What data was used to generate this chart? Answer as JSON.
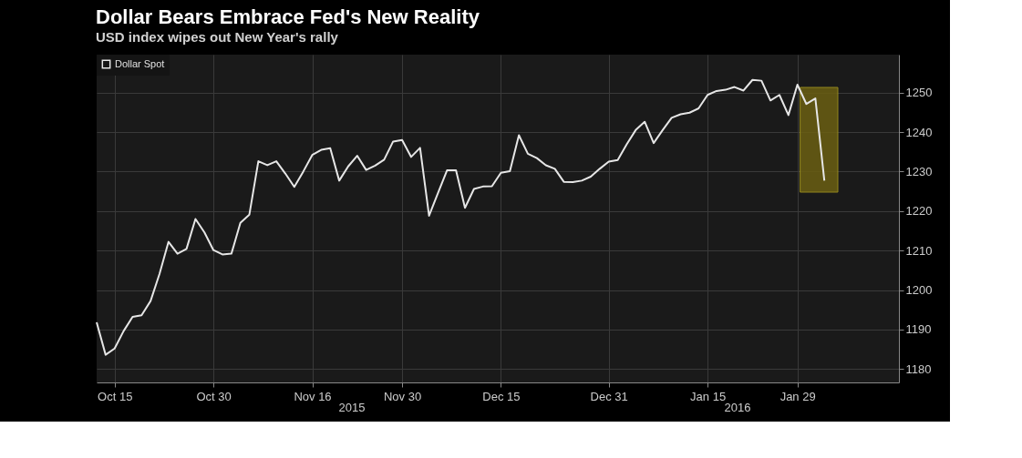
{
  "chart_data": {
    "type": "line",
    "title": "Dollar Bears Embrace Fed's New Reality",
    "subtitle": "USD index wipes out New Year's rally",
    "categories": [
      null,
      null,
      "Oct 15",
      null,
      null,
      null,
      null,
      null,
      null,
      null,
      null,
      null,
      null,
      "Oct 30",
      null,
      null,
      null,
      null,
      null,
      null,
      null,
      null,
      null,
      null,
      "Nov 16",
      null,
      null,
      null,
      null,
      null,
      null,
      null,
      null,
      null,
      "Nov 30",
      null,
      null,
      null,
      null,
      null,
      null,
      null,
      null,
      null,
      null,
      "Dec 15",
      null,
      null,
      null,
      null,
      null,
      null,
      null,
      null,
      null,
      null,
      null,
      "Dec 31",
      null,
      null,
      null,
      null,
      null,
      null,
      null,
      null,
      null,
      null,
      "Jan 15",
      null,
      null,
      null,
      null,
      null,
      null,
      null,
      null,
      null,
      "Jan 29",
      null,
      null,
      null
    ],
    "series": [
      {
        "name": "Dollar Spot",
        "color": "#e6e6e6",
        "values": [
          1191.8,
          1183.6,
          1185.2,
          1189.6,
          1193.2,
          1193.6,
          1197.2,
          1204.1,
          1212.2,
          1209.2,
          1210.4,
          1218.0,
          1214.6,
          1210.1,
          1209.0,
          1209.2,
          1217.0,
          1219.1,
          1232.6,
          1231.6,
          1232.6,
          1229.5,
          1226.1,
          1230.0,
          1234.2,
          1235.5,
          1235.9,
          1227.7,
          1231.3,
          1234.0,
          1230.4,
          1231.5,
          1233.0,
          1237.6,
          1238.0,
          1233.7,
          1236.0,
          1218.8,
          1224.6,
          1230.3,
          1230.3,
          1220.8,
          1225.6,
          1226.2,
          1226.3,
          1229.7,
          1230.1,
          1239.2,
          1234.5,
          1233.4,
          1231.6,
          1230.7,
          1227.4,
          1227.3,
          1227.7,
          1228.7,
          1230.7,
          1232.5,
          1232.9,
          1236.9,
          1240.5,
          1242.6,
          1237.2,
          1240.5,
          1243.6,
          1244.5,
          1244.9,
          1246.0,
          1249.4,
          1250.4,
          1250.7,
          1251.4,
          1250.5,
          1253.2,
          1253.0,
          1248.0,
          1249.4,
          1244.3,
          1252.0,
          1247.1,
          1248.5,
          1227.7
        ]
      }
    ],
    "ylim": [
      1176.6,
      1259.6
    ],
    "yticks": [
      1180,
      1190,
      1200,
      1210,
      1220,
      1230,
      1240,
      1250
    ],
    "annotations": [
      "2015",
      "2016"
    ],
    "grid": true,
    "legend": "top left"
  }
}
